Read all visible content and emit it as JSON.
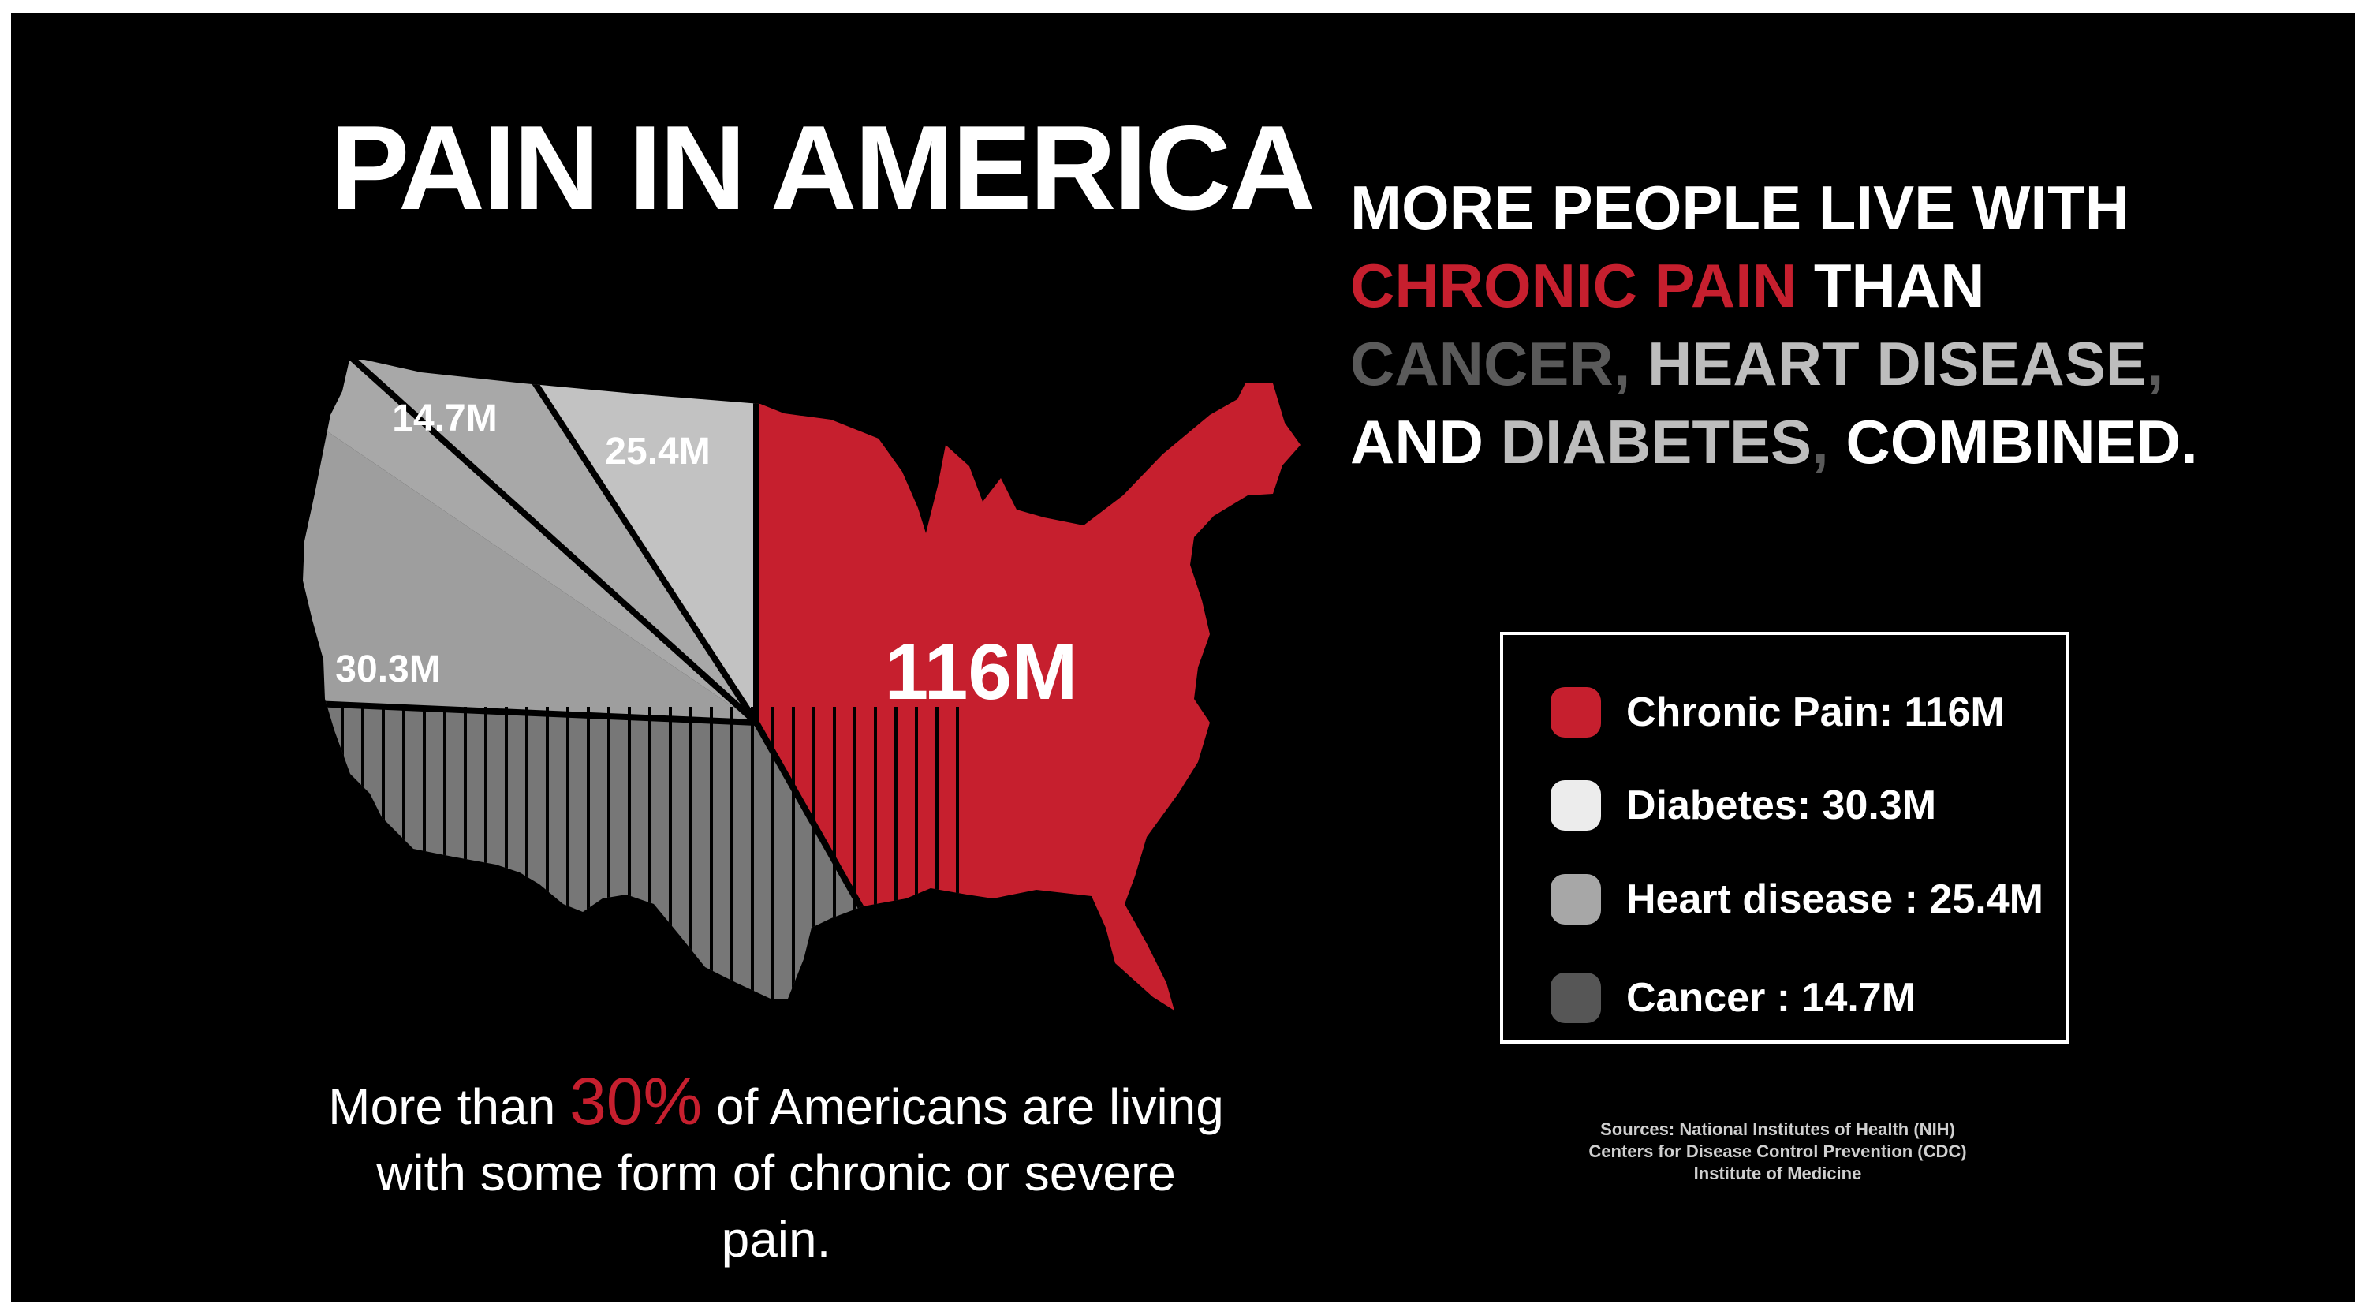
{
  "title": "PAIN IN AMERICA",
  "headline": {
    "line1": "MORE PEOPLE LIVE WITH",
    "chronic_pain": "CHRONIC PAIN",
    "than": " THAN",
    "cancer": "CANCER",
    "comma": ",",
    "heart_disease": " HEART DISEASE",
    "comma2": ",",
    "and": "AND ",
    "diabetes": "DIABETES",
    "comma3": ",",
    "combined": " COMBINED."
  },
  "chart_data": {
    "type": "pie",
    "categories": [
      "Chronic Pain",
      "Diabetes",
      "Heart disease",
      "Cancer"
    ],
    "values": [
      116,
      30.3,
      25.4,
      14.7
    ],
    "unit": "M",
    "map_labels": [
      "116M",
      "30.3M",
      "25.4M",
      "14.7M"
    ],
    "legend": [
      {
        "label": "Chronic Pain: 116M",
        "color": "#c61f2e"
      },
      {
        "label": "Diabetes: 30.3M",
        "color": "#ececec"
      },
      {
        "label": "Heart disease : 25.4M",
        "color": "#a7a7a7"
      },
      {
        "label": "Cancer : 14.7M",
        "color": "#565656"
      }
    ],
    "colors": {
      "chronic_pain": "#c61f2e",
      "large_gray": "#9e9e9e",
      "light_gray": "#c2c2c2",
      "striped_gray": "#777777"
    }
  },
  "bottom_text": {
    "before": "More than ",
    "percent": "30%",
    "after": " of Americans are living with some form of chronic or severe pain."
  },
  "sources": {
    "line1": "Sources: National Institutes of Health (NIH)",
    "line2": "Centers for Disease Control Prevention (CDC)",
    "line3": "Institute of Medicine"
  }
}
